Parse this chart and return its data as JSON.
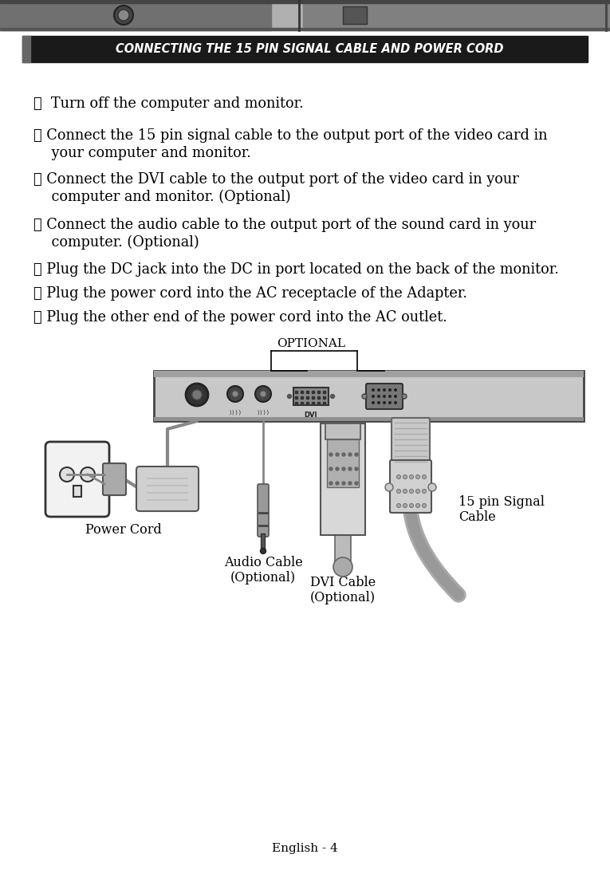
{
  "title": "CONNECTING THE 15 PIN SIGNAL CABLE AND POWER CORD",
  "title_bg": "#1a1a1a",
  "title_color": "#ffffff",
  "step1": "①  Turn off the computer and monitor.",
  "step2_num": "②",
  "step2_line1": " Connect the 15 pin signal cable to the output port of the video card in",
  "step2_line2": "    your computer and monitor.",
  "step3_num": "③",
  "step3_line1": " Connect the DVI cable to the output port of the video card in your",
  "step3_line2": "    computer and monitor. (Optional)",
  "step4_num": "④",
  "step4_line1": " Connect the audio cable to the output port of the sound card in your",
  "step4_line2": "    computer. (Optional)",
  "step5": "⑤ Plug the DC jack into the DC in port located on the back of the monitor.",
  "step6": "⑥ Plug the power cord into the AC receptacle of the Adapter.",
  "step7": "⑦ Plug the other end of the power cord into the AC outlet.",
  "optional_label": "OPTIONAL",
  "label_power_cord": "Power Cord",
  "label_audio_line1": "Audio Cable",
  "label_audio_line2": "(Optional)",
  "label_dvi_line1": "DVI Cable",
  "label_dvi_line2": "(Optional)",
  "label_signal_line1": "15 pin Signal",
  "label_signal_line2": "Cable",
  "dvi_port_label": "DVI",
  "footer": "English - 4",
  "bg_color": "#ffffff",
  "text_color": "#000000",
  "panel_color": "#c0c0c0",
  "panel_dark": "#909090",
  "header_gray1": "#888888",
  "header_gray2": "#aaaaaa",
  "header_dark": "#444444"
}
